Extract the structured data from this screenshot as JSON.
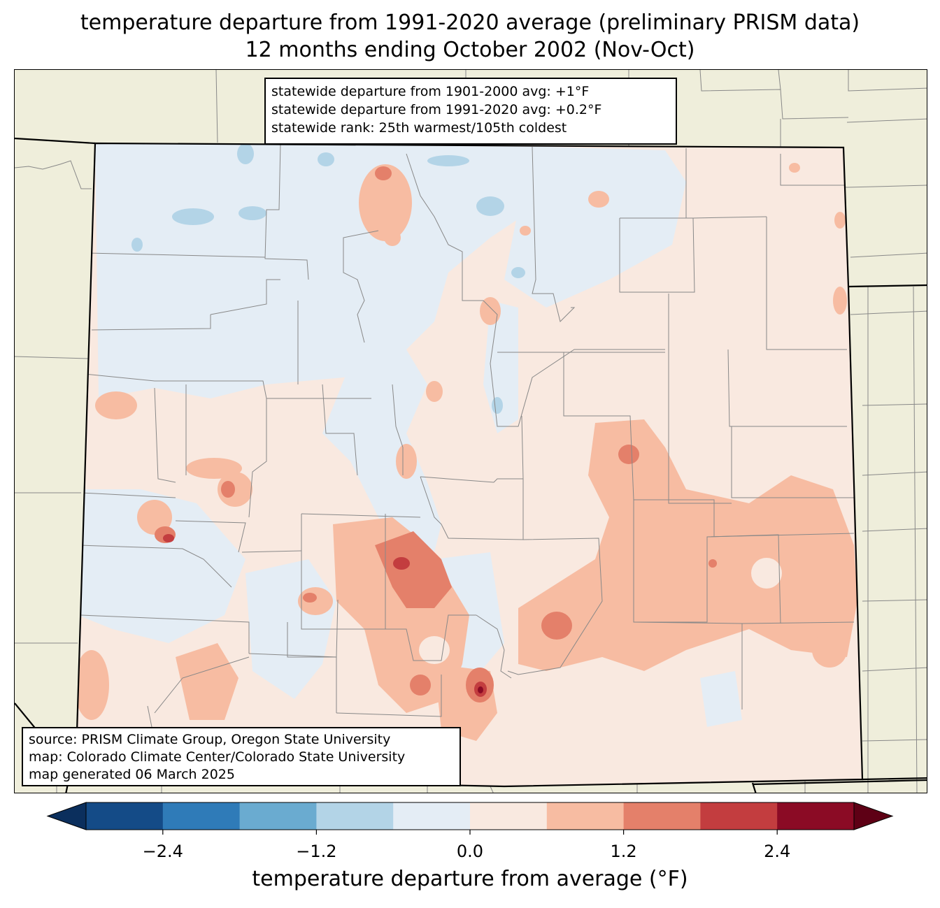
{
  "title": {
    "line1": "temperature departure from 1991-2020 average (preliminary PRISM data)",
    "line2": "12 months ending October 2002 (Nov-Oct)"
  },
  "stats_box": {
    "line1": "statewide departure from 1901-2000 avg: +1°F",
    "line2": "statewide departure from 1991-2020 avg: +0.2°F",
    "line3": "statewide rank: 25th warmest/105th coldest"
  },
  "source_box": {
    "line1": "source: PRISM Climate Group, Oregon State University",
    "line2": "map: Colorado Climate Center/Colorado State University",
    "line3": "map generated 06 March 2025"
  },
  "colorbar": {
    "label": "temperature departure from average (°F)",
    "ticks": [
      "−2.4",
      "−1.2",
      "0.0",
      "1.2",
      "2.4"
    ],
    "tick_values": [
      -2.4,
      -1.2,
      0.0,
      1.2,
      2.4
    ],
    "bounds": [
      -3.0,
      -2.4,
      -1.8,
      -1.2,
      -0.6,
      0.0,
      0.6,
      1.2,
      1.8,
      2.4,
      3.0
    ],
    "colors": [
      "#144b87",
      "#2f7bb8",
      "#6aabd0",
      "#b3d4e7",
      "#e4edf5",
      "#f9e9e0",
      "#f7bca2",
      "#e4806a",
      "#c33d3f",
      "#8b0b25"
    ],
    "under_color": "#0b2f5d",
    "over_color": "#5e0015"
  },
  "map": {
    "land_color": "#efeedb",
    "base_anomaly_color": "#f9e9e0"
  }
}
